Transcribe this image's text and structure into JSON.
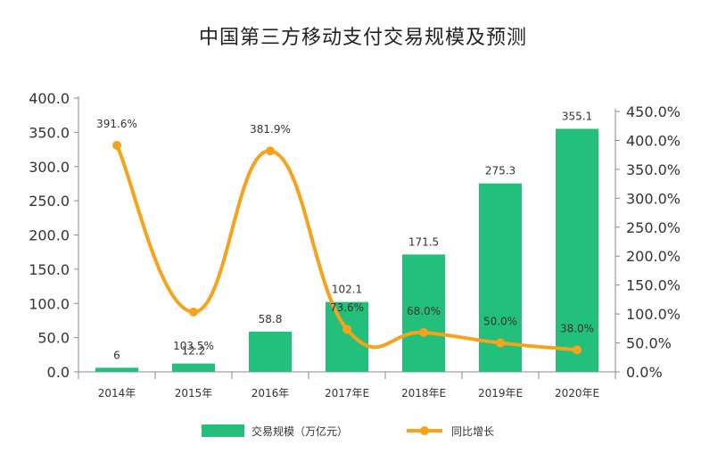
{
  "chart_data": {
    "type": "bar",
    "title": "中国第三方移动支付交易规模及预测",
    "categories": [
      "2014年",
      "2015年",
      "2016年",
      "2017年E",
      "2018年E",
      "2019年E",
      "2020年E"
    ],
    "series": [
      {
        "name": "交易规模（万亿元）",
        "type": "bar",
        "axis": "left",
        "values": [
          6,
          12.2,
          58.8,
          102.1,
          171.5,
          275.3,
          355.1
        ],
        "labels": [
          "6",
          "12.2",
          "58.8",
          "102.1",
          "171.5",
          "275.3",
          "355.1"
        ]
      },
      {
        "name": "同比增长",
        "type": "line",
        "axis": "right",
        "values": [
          391.6,
          103.5,
          381.9,
          73.6,
          68.0,
          50.0,
          38.0
        ],
        "labels": [
          "391.6%",
          "103.5%",
          "381.9%",
          "73.6%",
          "68.0%",
          "50.0%",
          "38.0%"
        ]
      }
    ],
    "y_left": {
      "ylim": [
        0,
        400
      ],
      "ticks": [
        "0.0",
        "50.0",
        "100.0",
        "150.0",
        "200.0",
        "250.0",
        "300.0",
        "350.0",
        "400.0"
      ]
    },
    "y_right": {
      "ylim": [
        0,
        450
      ],
      "ticks": [
        "0.0%",
        "50.0%",
        "100.0%",
        "150.0%",
        "200.0%",
        "250.0%",
        "300.0%",
        "350.0%",
        "400.0%",
        "450.0%"
      ]
    },
    "grid": false,
    "legend": "bottom",
    "colors": {
      "bar": "#22c07a",
      "line": "#f7a21b",
      "axis": "#888888",
      "text": "#333333"
    }
  }
}
